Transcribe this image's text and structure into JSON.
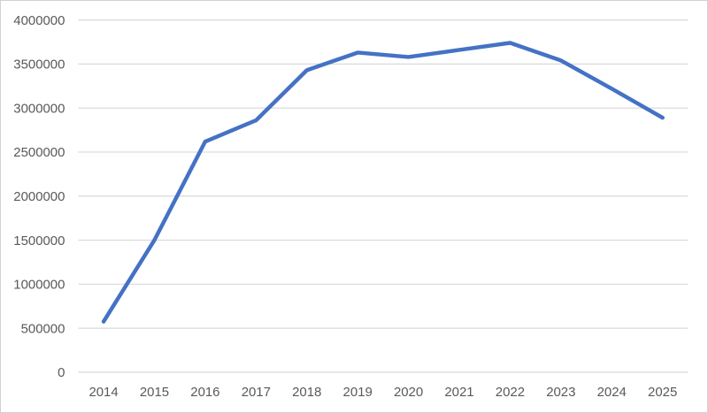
{
  "chart_data": {
    "type": "line",
    "title": "",
    "categories": [
      "2014",
      "2015",
      "2016",
      "2017",
      "2018",
      "2019",
      "2020",
      "2021",
      "2022",
      "2023",
      "2024",
      "2025"
    ],
    "series": [
      {
        "name": "series-1",
        "color": "#4472C4",
        "values": [
          575000,
          1500000,
          2620000,
          2860000,
          3430000,
          3630000,
          3580000,
          3660000,
          3740000,
          3540000,
          3220000,
          2890000
        ]
      }
    ],
    "xlabel": "",
    "ylabel": "",
    "ylim": [
      0,
      4000000
    ],
    "y_tick_step": 500000,
    "y_tick_labels": [
      "0",
      "500000",
      "1000000",
      "1500000",
      "2000000",
      "2500000",
      "3000000",
      "3500000",
      "4000000"
    ],
    "grid": true,
    "legend_position": "none",
    "styles": {
      "gridline_color": "#d9d9d9",
      "axis_line_color": "#d9d9d9",
      "tick_label_color": "#595959",
      "background_color": "#ffffff",
      "border_color": "#d2d2d2",
      "line_width": 4.5,
      "tick_font_size": 15
    }
  }
}
